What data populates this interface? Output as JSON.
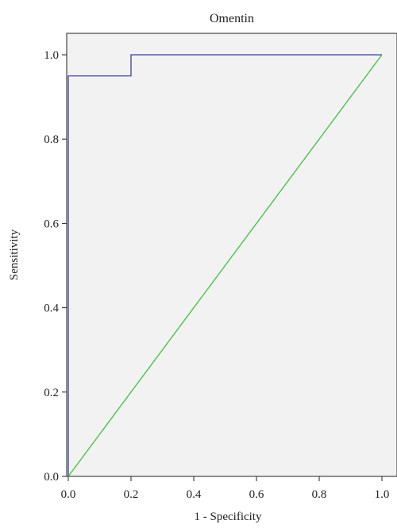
{
  "chart_data": {
    "type": "line",
    "title": "Omentin",
    "xlabel": "1 - Specificity",
    "ylabel": "Sensitivity",
    "xlim": [
      0,
      1
    ],
    "ylim": [
      0,
      1
    ],
    "xticks": [
      "0.0",
      "0.2",
      "0.4",
      "0.6",
      "0.8",
      "1.0"
    ],
    "yticks": [
      "0.0",
      "0.2",
      "0.4",
      "0.6",
      "0.8",
      "1.0"
    ],
    "grid": false,
    "legend": "none",
    "background": "#f2f2f2",
    "series": [
      {
        "color": "#3a3fa0",
        "step": true,
        "points": [
          [
            0,
            0
          ],
          [
            0,
            0.95
          ],
          [
            0.2,
            0.95
          ],
          [
            0.2,
            1.0
          ],
          [
            1.0,
            1.0
          ]
        ]
      },
      {
        "color": "#3cc13c",
        "step": false,
        "points": [
          [
            0,
            0
          ],
          [
            1.0,
            1.0
          ]
        ]
      }
    ]
  }
}
